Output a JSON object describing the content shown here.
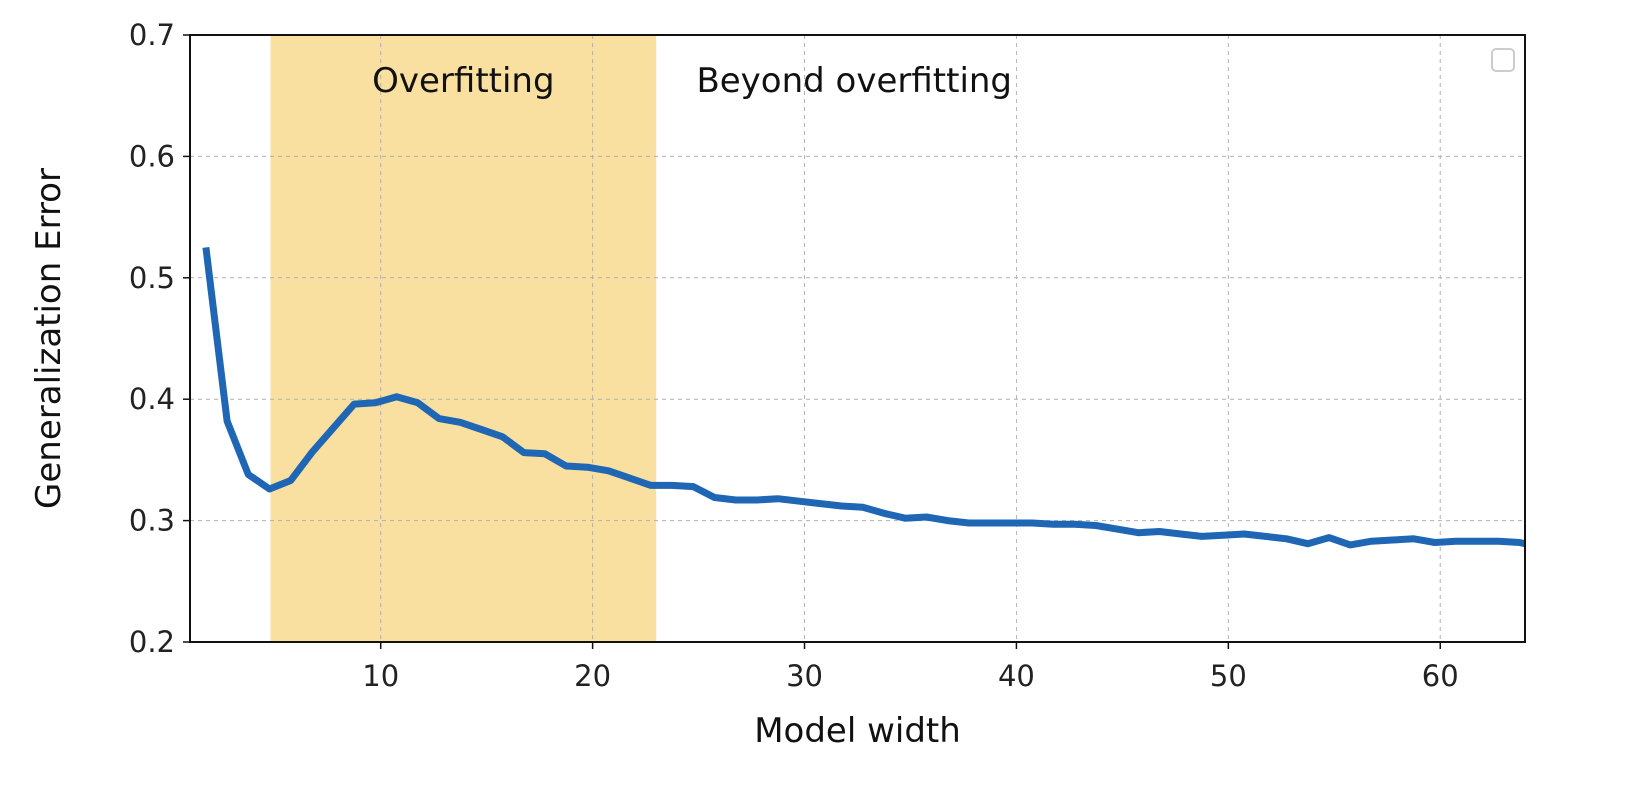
{
  "chart_data": {
    "type": "line",
    "title": "",
    "xlabel": "Model width",
    "ylabel": "Generalization Error",
    "xlim": [
      1,
      64
    ],
    "ylim": [
      0.2,
      0.7
    ],
    "xticks": [
      10,
      20,
      30,
      40,
      50,
      60
    ],
    "xtick_labels": [
      "10",
      "20",
      "30",
      "40",
      "50",
      "60"
    ],
    "yticks": [
      0.2,
      0.3,
      0.4,
      0.5,
      0.6,
      0.7
    ],
    "ytick_labels": [
      "0.2",
      "0.3",
      "0.4",
      "0.5",
      "0.6",
      "0.7"
    ],
    "grid": true,
    "legend": {
      "placement": "top-right",
      "entries": []
    },
    "shaded_regions": [
      {
        "label": "Overfitting",
        "x_start": 4.8,
        "x_end": 23,
        "color": "#f9e0a0"
      }
    ],
    "annotations": [
      {
        "text": "Overfitting"
      },
      {
        "text": "Beyond overfitting"
      }
    ],
    "series": [
      {
        "color": "#1f66b4",
        "x": [
          1.75,
          2.75,
          3.75,
          4.75,
          5.75,
          6.75,
          7.75,
          8.75,
          9.75,
          10.75,
          11.75,
          12.75,
          13.75,
          14.75,
          15.75,
          16.75,
          17.75,
          18.75,
          19.75,
          20.75,
          21.75,
          22.75,
          23.75,
          24.75,
          25.75,
          26.75,
          27.75,
          28.75,
          29.75,
          30.75,
          31.75,
          32.75,
          33.75,
          34.75,
          35.75,
          36.75,
          37.75,
          38.75,
          39.75,
          40.75,
          41.75,
          42.75,
          43.75,
          44.75,
          45.75,
          46.75,
          47.75,
          48.75,
          49.75,
          50.75,
          51.75,
          52.75,
          53.75,
          54.75,
          55.75,
          56.75,
          57.75,
          58.75,
          59.75,
          60.75,
          61.75,
          62.75,
          63.75,
          64
        ],
        "y": [
          0.525,
          0.382,
          0.338,
          0.326,
          0.333,
          0.356,
          0.376,
          0.396,
          0.397,
          0.402,
          0.397,
          0.384,
          0.381,
          0.375,
          0.369,
          0.356,
          0.355,
          0.345,
          0.344,
          0.341,
          0.335,
          0.329,
          0.329,
          0.328,
          0.319,
          0.317,
          0.317,
          0.318,
          0.316,
          0.314,
          0.312,
          0.311,
          0.306,
          0.302,
          0.303,
          0.3,
          0.298,
          0.298,
          0.298,
          0.298,
          0.297,
          0.297,
          0.296,
          0.293,
          0.29,
          0.291,
          0.289,
          0.287,
          0.288,
          0.289,
          0.287,
          0.285,
          0.281,
          0.286,
          0.28,
          0.283,
          0.284,
          0.285,
          0.282,
          0.283,
          0.283,
          0.283,
          0.282,
          0.281
        ]
      }
    ]
  }
}
